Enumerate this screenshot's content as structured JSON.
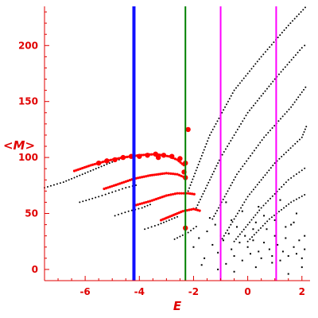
{
  "chart_data": {
    "type": "scatter",
    "title": "",
    "xlabel": "E",
    "ylabel": "<M>",
    "xlim": [
      -7.5,
      2.3
    ],
    "ylim": [
      -10,
      235
    ],
    "xticks": [
      -6,
      -4,
      -2,
      0,
      2
    ],
    "yticks": [
      0,
      50,
      100,
      150,
      200
    ],
    "xtick_labels": [
      "-6",
      "-4",
      "-2",
      "0",
      "2"
    ],
    "ytick_labels": [
      "0",
      "50",
      "100",
      "150",
      "200"
    ],
    "axis_color": "#e00000",
    "grid": false,
    "vertical_lines": [
      {
        "x": -4.2,
        "color": "#1010ff",
        "width": "thick"
      },
      {
        "x": -2.3,
        "color": "#008000",
        "width": "medium"
      },
      {
        "x": -1.0,
        "color": "#ff00ff",
        "width": "medium"
      },
      {
        "x": 1.05,
        "color": "#ff00ff",
        "width": "medium"
      }
    ],
    "series": [
      {
        "color": "#000000",
        "segments": [
          {
            "x": [
              -7.5,
              -6.8,
              -6.2,
              -5.6,
              -5.0,
              -4.5
            ],
            "y": [
              73,
              78,
              84,
              90,
              96,
              100
            ]
          },
          {
            "x": [
              -6.2,
              -5.5,
              -5.0,
              -4.5,
              -4.0
            ],
            "y": [
              60,
              65,
              69,
              73,
              76
            ]
          },
          {
            "x": [
              -4.9,
              -4.4,
              -3.9,
              -3.5
            ],
            "y": [
              48,
              52,
              55,
              59
            ]
          },
          {
            "x": [
              -3.8,
              -3.3,
              -2.9,
              -2.5
            ],
            "y": [
              36,
              40,
              44,
              48
            ]
          },
          {
            "x": [
              -2.7,
              -2.2,
              -1.8
            ],
            "y": [
              27,
              33,
              40
            ]
          },
          {
            "x": [
              -2.2,
              -1.4,
              -0.5,
              0.5,
              1.5,
              2.2
            ],
            "y": [
              70,
              120,
              160,
              190,
              218,
              236
            ]
          },
          {
            "x": [
              -1.9,
              -1.0,
              0.0,
              1.0,
              2.0,
              2.2
            ],
            "y": [
              55,
              100,
              140,
              170,
              198,
              202
            ]
          },
          {
            "x": [
              -1.3,
              -0.4,
              0.6,
              1.6,
              2.2
            ],
            "y": [
              45,
              85,
              118,
              145,
              165
            ]
          },
          {
            "x": [
              -1.0,
              0.0,
              1.0,
              2.0,
              2.2
            ],
            "y": [
              25,
              65,
              95,
              118,
              130
            ]
          },
          {
            "x": [
              -0.5,
              0.5,
              1.5,
              2.2
            ],
            "y": [
              25,
              55,
              80,
              92
            ]
          },
          {
            "x": [
              0.0,
              0.8,
              1.6,
              2.2
            ],
            "y": [
              25,
              45,
              60,
              68
            ]
          }
        ]
      },
      {
        "color": "#000000",
        "scatter": {
          "x": [
            -2.0,
            -1.8,
            -1.6,
            -1.5,
            -1.3,
            -1.2,
            -1.1,
            -0.9,
            -0.8,
            -0.7,
            -0.6,
            -0.5,
            -0.4,
            -0.3,
            -0.2,
            -0.1,
            0.0,
            0.1,
            0.2,
            0.3,
            0.4,
            0.5,
            0.6,
            0.7,
            0.8,
            0.9,
            1.0,
            1.1,
            1.2,
            1.3,
            1.4,
            1.5,
            1.6,
            1.7,
            1.8,
            1.9,
            2.0,
            2.1,
            -1.4,
            -1.0,
            -0.6,
            -0.2,
            0.2,
            0.6,
            1.0,
            1.4,
            1.8,
            2.1,
            -1.7,
            -1.1,
            -0.5,
            0.3,
            0.9,
            1.5,
            2.0,
            -0.8,
            0.4,
            1.2,
            1.7
          ],
          "y": [
            20,
            28,
            10,
            34,
            22,
            40,
            15,
            26,
            5,
            32,
            18,
            12,
            38,
            24,
            8,
            30,
            20,
            14,
            26,
            42,
            16,
            10,
            24,
            36,
            18,
            12,
            30,
            22,
            8,
            16,
            28,
            12,
            40,
            20,
            14,
            26,
            10,
            18,
            46,
            30,
            44,
            52,
            36,
            48,
            44,
            38,
            50,
            30,
            4,
            0,
            -2,
            2,
            6,
            -4,
            2,
            60,
            56,
            62,
            42
          ]
        }
      },
      {
        "color": "#ff0000",
        "segments": [
          {
            "x": [
              -6.4,
              -5.8,
              -5.2,
              -4.6,
              -4.0,
              -3.4,
              -2.9,
              -2.6,
              -2.3
            ],
            "y": [
              88,
              93,
              97,
              100,
              102,
              103,
              101,
              98,
              92
            ]
          },
          {
            "x": [
              -5.3,
              -4.8,
              -4.2,
              -3.6,
              -3.0,
              -2.6,
              -2.3
            ],
            "y": [
              72,
              76,
              81,
              84,
              86,
              85,
              82
            ]
          },
          {
            "x": [
              -4.2,
              -3.6,
              -3.0,
              -2.6,
              -2.2,
              -1.9
            ],
            "y": [
              57,
              61,
              66,
              68,
              68,
              67
            ]
          },
          {
            "x": [
              -3.2,
              -2.8,
              -2.4,
              -2.0,
              -1.7
            ],
            "y": [
              44,
              48,
              52,
              54,
              52
            ]
          }
        ]
      },
      {
        "color": "#ff0000",
        "big_points": {
          "x": [
            -5.5,
            -5.2,
            -4.9,
            -4.6,
            -4.3,
            -4.0,
            -3.7,
            -3.4,
            -3.1,
            -2.8,
            -2.5,
            -2.3,
            -2.35,
            -2.3,
            -2.2,
            -2.3,
            -3.3
          ],
          "y": [
            95,
            97,
            98,
            100,
            101,
            101,
            102,
            103,
            102,
            101,
            99,
            95,
            87,
            82,
            125,
            37,
            100
          ]
        }
      }
    ]
  }
}
